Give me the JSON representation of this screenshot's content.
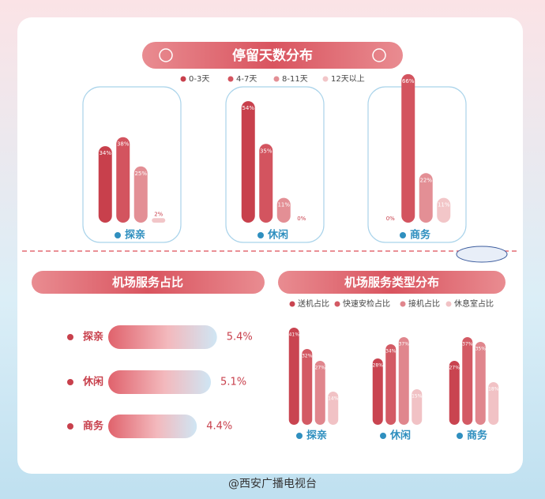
{
  "chart_data": [
    {
      "type": "bar",
      "title": "停留天数分布",
      "categories": [
        "探亲",
        "休闲",
        "商务"
      ],
      "series": [
        {
          "name": "0-3天",
          "color": "#c8404c",
          "values": [
            34,
            54,
            0
          ],
          "value_labels": [
            "34%",
            "54%",
            "0%"
          ]
        },
        {
          "name": "4-7天",
          "color": "#d3545f",
          "values": [
            38,
            35,
            66
          ],
          "value_labels": [
            "38%",
            "35%",
            "66%"
          ]
        },
        {
          "name": "8-11天",
          "color": "#e38f95",
          "values": [
            25,
            11,
            22
          ],
          "value_labels": [
            "25%",
            "11%",
            "22%"
          ]
        },
        {
          "name": "12天以上",
          "color": "#f2c6c8",
          "values": [
            2,
            0,
            11
          ],
          "value_labels": [
            "2%",
            "0%",
            "11%"
          ]
        }
      ]
    },
    {
      "type": "hbar",
      "title": "机场服务占比",
      "categories": [
        "探亲",
        "休闲",
        "商务"
      ],
      "values": [
        5.4,
        5.1,
        4.4
      ],
      "value_labels": [
        "5.4%",
        "5.1%",
        "4.4%"
      ]
    },
    {
      "type": "bar",
      "title": "机场服务类型分布",
      "categories": [
        "探亲",
        "休闲",
        "商务"
      ],
      "series": [
        {
          "name": "送机占比",
          "color": "#c94450",
          "values": [
            41,
            28,
            27
          ],
          "value_labels": [
            "41%",
            "28%",
            "27%"
          ]
        },
        {
          "name": "快速安检占比",
          "color": "#d35a64",
          "values": [
            32,
            34,
            37
          ],
          "value_labels": [
            "32%",
            "34%",
            "37%"
          ]
        },
        {
          "name": "接机占比",
          "color": "#e0868d",
          "values": [
            27,
            37,
            35
          ],
          "value_labels": [
            "27%",
            "37%",
            "35%"
          ]
        },
        {
          "name": "休息室占比",
          "color": "#f1c2c5",
          "values": [
            14,
            15,
            18
          ],
          "value_labels": [
            "14%",
            "15%",
            "18%"
          ]
        }
      ]
    }
  ],
  "footer": "@西安广播电视台"
}
